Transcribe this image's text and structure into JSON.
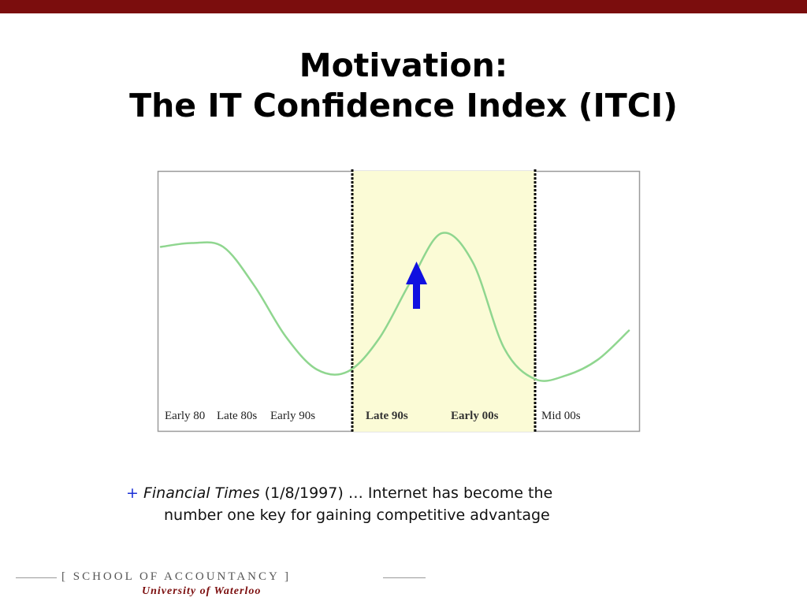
{
  "slide": {
    "title_line1": "Motivation:",
    "title_line2": "The IT Confidence Index (ITCI)"
  },
  "chart_data": {
    "type": "line",
    "title": "",
    "xlabel": "",
    "ylabel": "",
    "x_labels": [
      "Early 80",
      "Late 80s",
      "Early 90s",
      "Late  90s",
      "Early 00s",
      "Mid 00s"
    ],
    "highlighted_period": [
      "Late  90s",
      "Early 00s"
    ],
    "series": [
      {
        "values": [
          0.8,
          0.82,
          0.8,
          0.6,
          0.34,
          0.17,
          0.16,
          0.33,
          0.62,
          0.87,
          0.72,
          0.28,
          0.12,
          0.14,
          0.22,
          0.37
        ]
      }
    ],
    "arrow_direction": "up",
    "grid": false,
    "colors": {
      "line": "#8fd68f",
      "highlight": "#fbfbd6",
      "arrow": "#1010e0",
      "border": "#9a9a9a",
      "dotted_bounds": "#000000"
    }
  },
  "caption": {
    "bullet": "+",
    "source": "Financial Times",
    "line1_rest": " (1/8/1997) … Internet has become the",
    "line2": "number one key for gaining competitive advantage"
  },
  "footer": {
    "school": "[ SCHOOL OF ACCOUNTANCY ]",
    "university": "University of Waterloo",
    "accent_color": "#7b0d0d"
  }
}
